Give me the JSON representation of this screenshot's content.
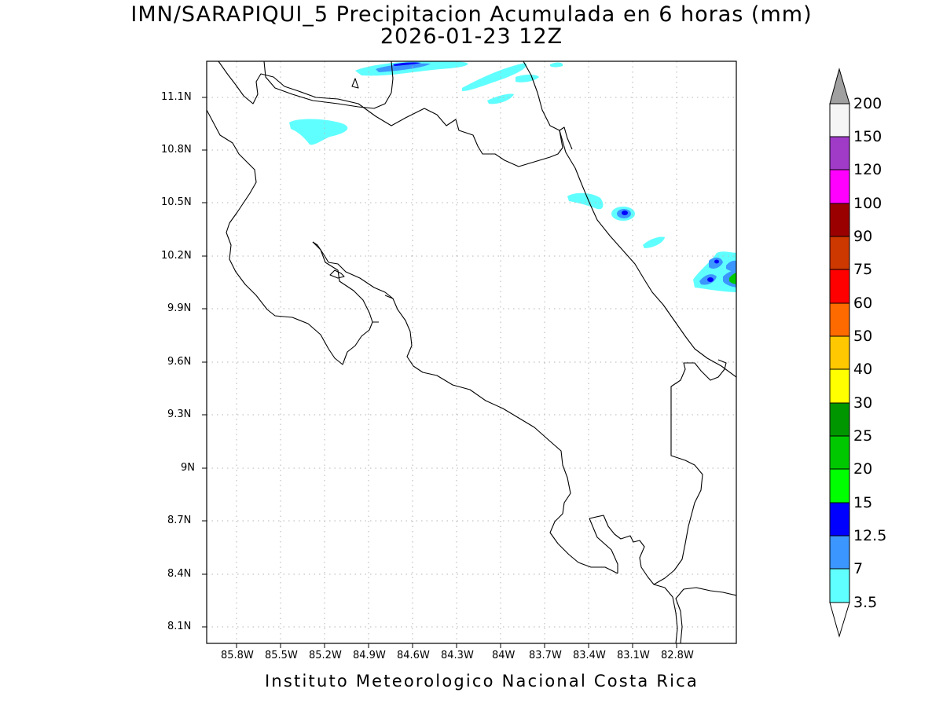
{
  "title": {
    "line1": "IMN/SARAPIQUI_5 Precipitacion Acumulada en 6 horas (mm)",
    "line2": "2026-01-23 12Z"
  },
  "footer": "Instituto Meteorologico Nacional Costa Rica",
  "map": {
    "lat_labels": [
      "11.1N",
      "10.8N",
      "10.5N",
      "10.2N",
      "9.9N",
      "9.6N",
      "9.3N",
      "9N",
      "8.7N",
      "8.4N",
      "8.1N"
    ],
    "lon_labels": [
      "85.8W",
      "85.5W",
      "85.2W",
      "84.9W",
      "84.6W",
      "84.3W",
      "84W",
      "83.7W",
      "83.4W",
      "83.1W",
      "82.8W"
    ],
    "grid": "dotted",
    "coastline_color": "#000000",
    "precip_cells": [
      {
        "lon": -84.7,
        "lat": 11.28,
        "max_level": "12.5"
      },
      {
        "lon": -84.05,
        "lat": 11.2,
        "max_level": "3.5"
      },
      {
        "lon": -85.2,
        "lat": 10.92,
        "max_level": "3.5"
      },
      {
        "lon": -83.4,
        "lat": 10.52,
        "max_level": "3.5"
      },
      {
        "lon": -83.25,
        "lat": 10.43,
        "max_level": "12.5"
      },
      {
        "lon": -83.07,
        "lat": 10.27,
        "max_level": "3.5"
      },
      {
        "lon": -82.7,
        "lat": 10.08,
        "max_level": "25"
      }
    ]
  },
  "colorbar": {
    "levels": [
      "200",
      "150",
      "120",
      "100",
      "90",
      "75",
      "60",
      "50",
      "40",
      "30",
      "25",
      "20",
      "15",
      "12.5",
      "7",
      "3.5"
    ],
    "colors": [
      "#a0a0a0",
      "#f5f5f5",
      "#a03bc8",
      "#ff00ff",
      "#9b0000",
      "#cd3700",
      "#ff0000",
      "#ff6a00",
      "#ffc800",
      "#ffff00",
      "#009600",
      "#00c800",
      "#00ff00",
      "#0000ff",
      "#3c96ff",
      "#60ffff",
      "#ffffff"
    ]
  }
}
